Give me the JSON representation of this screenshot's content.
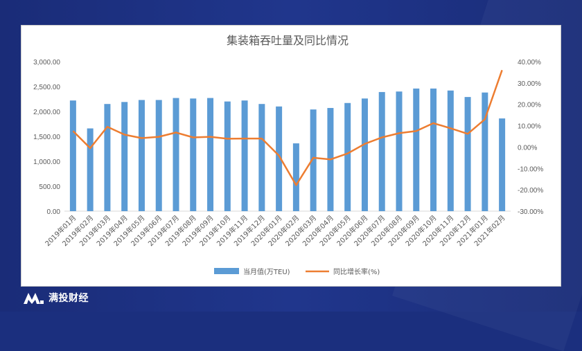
{
  "brand": {
    "name": "满投财经",
    "logo_icon": "mt-logo-icon"
  },
  "chart_data": {
    "type": "bar+line",
    "title": "集装箱吞吐量及同比情况",
    "categories": [
      "2019年01月",
      "2019年02月",
      "2019年03月",
      "2019年04月",
      "2019年05月",
      "2019年06月",
      "2019年07月",
      "2019年08月",
      "2019年09月",
      "2019年10月",
      "2019年11月",
      "2019年12月",
      "2020年01月",
      "2020年02月",
      "2020年03月",
      "2020年04月",
      "2020年05月",
      "2020年06月",
      "2020年07月",
      "2020年08月",
      "2020年09月",
      "2020年10月",
      "2020年11月",
      "2020年12月",
      "2021年01月",
      "2021年02月"
    ],
    "series": [
      {
        "name": "当月值(万TEU)",
        "type": "bar",
        "axis": "left",
        "color": "#5b9bd5",
        "values": [
          2220,
          1660,
          2150,
          2190,
          2230,
          2230,
          2270,
          2260,
          2270,
          2200,
          2220,
          2150,
          2100,
          1360,
          2040,
          2070,
          2170,
          2260,
          2390,
          2400,
          2460,
          2460,
          2420,
          2290,
          2380,
          1860
        ]
      },
      {
        "name": "同比增长率(%)",
        "type": "line",
        "axis": "right",
        "color": "#ed7d31",
        "values": [
          7.5,
          -0.5,
          9.5,
          5.8,
          4.2,
          4.8,
          6.8,
          4.5,
          4.8,
          3.9,
          4.0,
          4.0,
          -4.0,
          -17.8,
          -5.0,
          -5.8,
          -3.0,
          1.5,
          4.5,
          6.5,
          7.5,
          11.2,
          8.8,
          6.2,
          13.0,
          36.0
        ]
      }
    ],
    "y_left": {
      "min": 0,
      "max": 3000,
      "ticks": [
        "0.00",
        "500.00",
        "1,000.00",
        "1,500.00",
        "2,000.00",
        "2,500.00",
        "3,000.00"
      ]
    },
    "y_right": {
      "min": -30,
      "max": 40,
      "ticks": [
        "-30.00%",
        "-20.00%",
        "-10.00%",
        "0.00%",
        "10.00%",
        "20.00%",
        "30.00%",
        "40.00%"
      ]
    },
    "grid": false,
    "legend_position": "bottom"
  }
}
